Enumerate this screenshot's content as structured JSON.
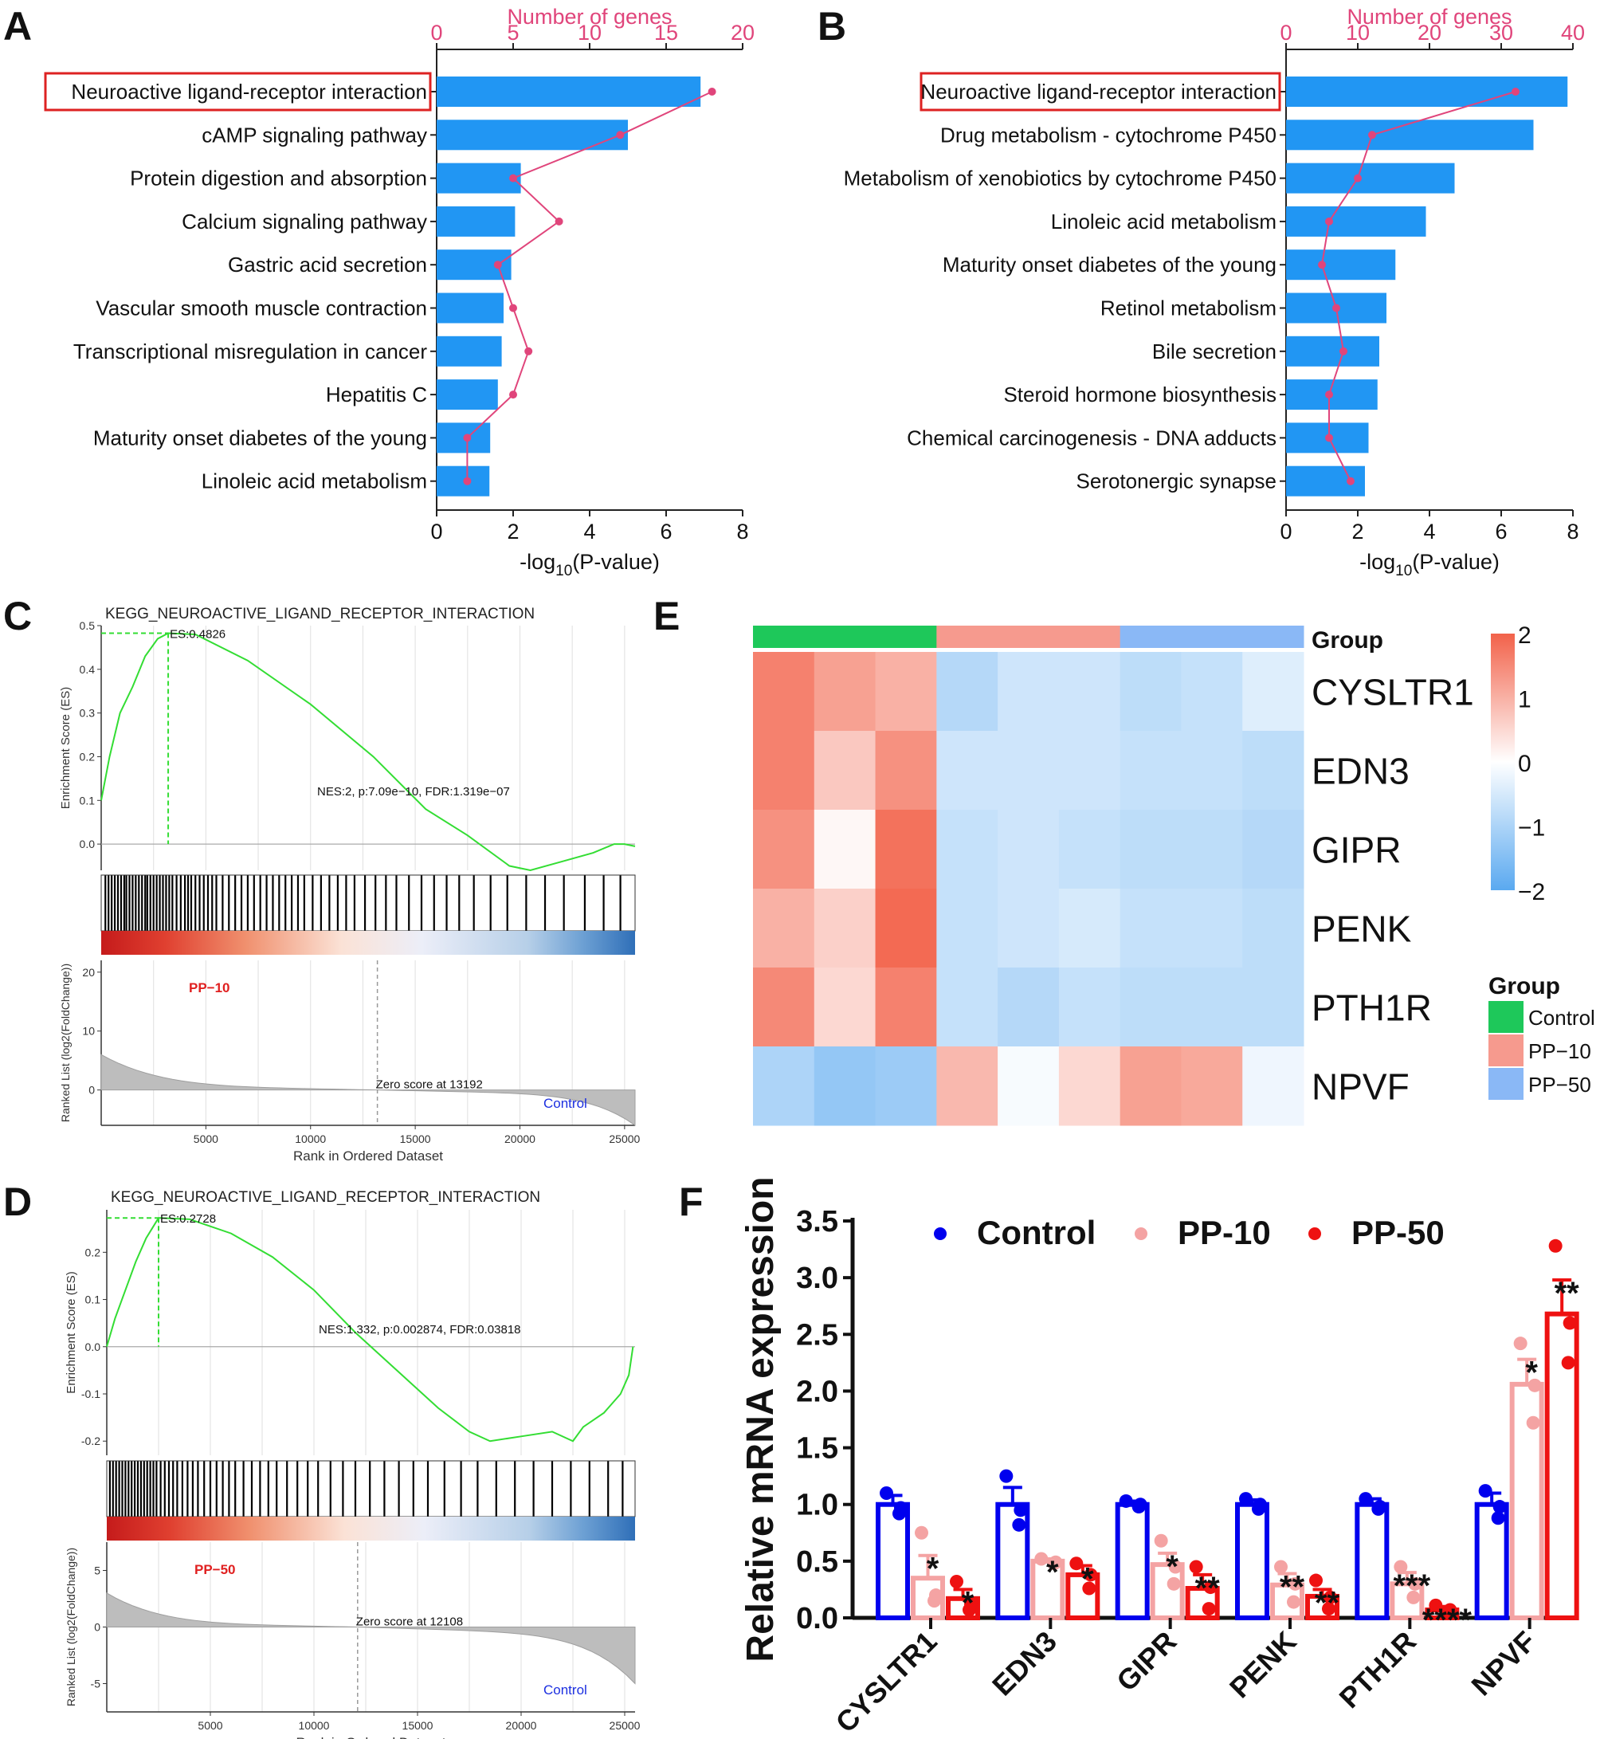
{
  "panel_labels": {
    "a": "A",
    "b": "B",
    "c": "C",
    "d": "D",
    "e": "E",
    "f": "F"
  },
  "colors": {
    "bar": "#2196f3",
    "line": "#e0457b",
    "gsea_line": "#33dd33",
    "control": "#0000ee",
    "pp10": "#f4a3a3",
    "pp50": "#ee1111",
    "heat_high": "#f2624a",
    "heat_low": "#5aa9f0",
    "group_control": "#1ec85a",
    "group_pp10": "#f69a8e",
    "group_pp50": "#8ab8f6"
  },
  "chart_data": [
    {
      "id": "A",
      "type": "bar",
      "orientation": "horizontal",
      "categories": [
        "Neuroactive ligand-receptor interaction",
        "cAMP signaling pathway",
        "Protein digestion and absorption",
        "Calcium signaling pathway",
        "Gastric acid secretion",
        "Vascular smooth muscle contraction",
        "Transcriptional misregulation in cancer",
        "Hepatitis C",
        "Maturity onset diabetes of the young",
        "Linoleic acid metabolism"
      ],
      "values": [
        6.9,
        5.0,
        2.2,
        2.05,
        1.95,
        1.75,
        1.7,
        1.6,
        1.4,
        1.38
      ],
      "line_values": [
        18,
        12,
        5,
        8,
        4,
        5,
        6,
        5,
        2,
        2
      ],
      "highlight_index": 0,
      "xlabel_main": "-log",
      "xlabel_sub": "10",
      "xlabel_tail": "(P-value)",
      "xlim": [
        0,
        8
      ],
      "x_ticks": [
        "0",
        "2",
        "4",
        "6",
        "8"
      ],
      "top_axis_label": "Number of genes",
      "top_lim": [
        0,
        20
      ],
      "top_ticks": [
        "0",
        "5",
        "10",
        "15",
        "20"
      ]
    },
    {
      "id": "B",
      "type": "bar",
      "orientation": "horizontal",
      "categories": [
        "Neuroactive ligand-receptor interaction",
        "Drug metabolism - cytochrome P450",
        "Metabolism of xenobiotics by cytochrome P450",
        "Linoleic acid metabolism",
        "Maturity onset diabetes of the young",
        "Retinol metabolism",
        "Bile secretion",
        "Steroid hormone biosynthesis",
        "Chemical carcinogenesis - DNA adducts",
        "Serotonergic synapse"
      ],
      "values": [
        7.85,
        6.9,
        4.7,
        3.9,
        3.05,
        2.8,
        2.6,
        2.55,
        2.3,
        2.2
      ],
      "line_values": [
        32,
        12,
        10,
        6,
        5,
        7,
        8,
        6,
        6,
        9
      ],
      "highlight_index": 0,
      "xlabel_main": "-log",
      "xlabel_sub": "10",
      "xlabel_tail": "(P-value)",
      "xlim": [
        0,
        8
      ],
      "x_ticks": [
        "0",
        "2",
        "4",
        "6",
        "8"
      ],
      "top_axis_label": "Number of genes",
      "top_lim": [
        0,
        40
      ],
      "top_ticks": [
        "0",
        "10",
        "20",
        "30",
        "40"
      ]
    },
    {
      "id": "C",
      "type": "line",
      "title": "KEGG_NEUROACTIVE_LIGAND_RECEPTOR_INTERACTION",
      "es_label": "ES:0.4826",
      "stats_label": "NES:2, p:7.09e−10, FDR:1.319e−07",
      "es_ylabel": "Enrichment Score (ES)",
      "es_yticks": [
        "0.0",
        "0.1",
        "0.2",
        "0.3",
        "0.4",
        "0.5"
      ],
      "es_ylim": [
        -0.06,
        0.5
      ],
      "peak": [
        3200,
        0.4826
      ],
      "es_curve": [
        [
          0,
          0.1
        ],
        [
          400,
          0.2
        ],
        [
          900,
          0.3
        ],
        [
          1500,
          0.36
        ],
        [
          2100,
          0.43
        ],
        [
          2700,
          0.47
        ],
        [
          3200,
          0.4826
        ],
        [
          4500,
          0.48
        ],
        [
          7000,
          0.42
        ],
        [
          10000,
          0.32
        ],
        [
          13000,
          0.2
        ],
        [
          15500,
          0.08
        ],
        [
          17500,
          0.02
        ],
        [
          19500,
          -0.05
        ],
        [
          20500,
          -0.06
        ],
        [
          22000,
          -0.04
        ],
        [
          23500,
          -0.02
        ],
        [
          24500,
          0.0
        ],
        [
          25000,
          0.0
        ],
        [
          25500,
          -0.005
        ]
      ],
      "rank_ylabel": "Ranked List (log2(FoldChange))",
      "rank_yticks": [
        "0",
        "10",
        "20"
      ],
      "rank_ylim": [
        -6,
        22
      ],
      "rank_range": [
        6,
        -6
      ],
      "group_top": "PP−10",
      "group_bottom": "Control",
      "zero_label": "Zero score at 13192",
      "zero_rank": 13192,
      "xlabel": "Rank in Ordered Dataset",
      "x_ticks": [
        "5000",
        "10000",
        "15000",
        "20000",
        "25000"
      ],
      "xlim": [
        0,
        25500
      ],
      "hits": [
        200,
        350,
        500,
        650,
        800,
        950,
        1100,
        1200,
        1350,
        1500,
        1650,
        1800,
        1950,
        2100,
        2200,
        2350,
        2500,
        2650,
        2800,
        2950,
        3100,
        3250,
        3400,
        3600,
        3800,
        4000,
        4150,
        4300,
        4500,
        4700,
        4900,
        5100,
        5300,
        5500,
        5800,
        6100,
        6400,
        6700,
        7000,
        7300,
        7600,
        7900,
        8200,
        8500,
        8800,
        9100,
        9400,
        9700,
        10100,
        10500,
        10900,
        11300,
        11700,
        12100,
        12600,
        13100,
        13600,
        14100,
        14700,
        15300,
        15900,
        16500,
        17100,
        17800,
        18600,
        19400,
        20300,
        21200,
        22100,
        23100,
        24000,
        24800
      ]
    },
    {
      "id": "D",
      "type": "line",
      "title": "KEGG_NEUROACTIVE_LIGAND_RECEPTOR_INTERACTION",
      "es_label": "ES:0.2728",
      "stats_label": "NES:1.332, p:0.002874, FDR:0.03818",
      "es_ylabel": "Enrichment Score (ES)",
      "es_yticks": [
        "-0.2",
        "-0.1",
        "0.0",
        "0.1",
        "0.2"
      ],
      "es_ylim": [
        -0.23,
        0.29
      ],
      "peak": [
        2500,
        0.2728
      ],
      "es_curve": [
        [
          0,
          0.0
        ],
        [
          400,
          0.06
        ],
        [
          900,
          0.12
        ],
        [
          1400,
          0.18
        ],
        [
          1900,
          0.23
        ],
        [
          2500,
          0.2728
        ],
        [
          4000,
          0.27
        ],
        [
          6000,
          0.24
        ],
        [
          8000,
          0.19
        ],
        [
          10000,
          0.12
        ],
        [
          12000,
          0.03
        ],
        [
          14000,
          -0.05
        ],
        [
          16000,
          -0.13
        ],
        [
          17500,
          -0.18
        ],
        [
          18500,
          -0.2
        ],
        [
          20000,
          -0.19
        ],
        [
          21500,
          -0.18
        ],
        [
          22500,
          -0.2
        ],
        [
          23000,
          -0.17
        ],
        [
          24000,
          -0.14
        ],
        [
          24800,
          -0.1
        ],
        [
          25200,
          -0.06
        ],
        [
          25400,
          0.0
        ]
      ],
      "rank_ylabel": "Ranked List (log2(FoldChange))",
      "rank_yticks": [
        "-5",
        "0",
        "5"
      ],
      "rank_ylim": [
        -7.5,
        7.5
      ],
      "rank_range": [
        3,
        -5
      ],
      "group_top": "PP−50",
      "group_bottom": "Control",
      "zero_label": "Zero score at 12108",
      "zero_rank": 12108,
      "xlabel": "Rank in Ordered Dataset",
      "x_ticks": [
        "5000",
        "10000",
        "15000",
        "20000",
        "25000"
      ],
      "xlim": [
        0,
        25500
      ],
      "hits": [
        150,
        300,
        450,
        600,
        750,
        900,
        1050,
        1200,
        1350,
        1500,
        1650,
        1800,
        1950,
        2100,
        2250,
        2400,
        2600,
        2800,
        3000,
        3200,
        3400,
        3650,
        3900,
        4150,
        4400,
        4700,
        5000,
        5300,
        5600,
        5900,
        6200,
        6600,
        7000,
        7400,
        7800,
        8200,
        8700,
        9200,
        9700,
        10200,
        10800,
        11400,
        12000,
        12700,
        13400,
        14100,
        14800,
        15500,
        16300,
        17100,
        17900,
        18800,
        19700,
        20600,
        21500,
        22400,
        23300,
        24200,
        24900
      ]
    },
    {
      "id": "E",
      "type": "heatmap",
      "rows": [
        "CYSLTR1",
        "EDN3",
        "GIPR",
        "PENK",
        "PTH1R",
        "NPVF"
      ],
      "group_row_label": "Group",
      "columns": [
        "Control",
        "Control",
        "Control",
        "PP-10",
        "PP-10",
        "PP-10",
        "PP-50",
        "PP-50",
        "PP-50"
      ],
      "values": [
        [
          1.6,
          1.2,
          1.0,
          -0.9,
          -0.6,
          -0.6,
          -0.8,
          -0.7,
          -0.4
        ],
        [
          1.6,
          0.7,
          1.4,
          -0.6,
          -0.6,
          -0.6,
          -0.7,
          -0.7,
          -0.8
        ],
        [
          1.4,
          0.1,
          1.8,
          -0.7,
          -0.6,
          -0.7,
          -0.8,
          -0.8,
          -0.9
        ],
        [
          1.0,
          0.6,
          1.9,
          -0.7,
          -0.6,
          -0.5,
          -0.7,
          -0.7,
          -0.8
        ],
        [
          1.5,
          0.5,
          1.6,
          -0.7,
          -0.9,
          -0.7,
          -0.8,
          -0.8,
          -0.8
        ],
        [
          -1.0,
          -1.3,
          -1.2,
          0.9,
          -0.1,
          0.5,
          1.2,
          1.1,
          -0.2
        ]
      ],
      "legend_ticks": [
        "2",
        "1",
        "0",
        "−1",
        "−2"
      ],
      "legend_range": [
        -2,
        2
      ],
      "group_legend_title": "Group",
      "group_legend": [
        "Control",
        "PP−10",
        "PP−50"
      ]
    },
    {
      "id": "F",
      "type": "bar",
      "categories": [
        "CYSLTR1",
        "EDN3",
        "GIPR",
        "PENK",
        "PTH1R",
        "NPVF"
      ],
      "ylabel": "Relative mRNA expression",
      "ylim": [
        0,
        3.5
      ],
      "y_ticks": [
        "0.0",
        "0.5",
        "1.0",
        "1.5",
        "2.0",
        "2.5",
        "3.0",
        "3.5"
      ],
      "series": [
        {
          "name": "Control",
          "values": [
            1.0,
            1.0,
            1.0,
            1.0,
            1.0,
            1.0
          ],
          "err": [
            0.08,
            0.15,
            0.03,
            0.04,
            0.05,
            0.1
          ],
          "points": [
            [
              1.1,
              0.97,
              0.92
            ],
            [
              1.25,
              0.95,
              0.82
            ],
            [
              1.03,
              1.0,
              0.98
            ],
            [
              1.05,
              1.0,
              0.96
            ],
            [
              1.05,
              0.98,
              0.96
            ],
            [
              1.12,
              0.98,
              0.88
            ]
          ],
          "sig": [
            "",
            "",
            "",
            "",
            "",
            ""
          ]
        },
        {
          "name": "PP-10",
          "values": [
            0.35,
            0.5,
            0.47,
            0.29,
            0.3,
            2.06
          ],
          "err": [
            0.2,
            0.02,
            0.1,
            0.1,
            0.1,
            0.22
          ],
          "points": [
            [
              0.75,
              0.2,
              0.15
            ],
            [
              0.52,
              0.49,
              0.48
            ],
            [
              0.68,
              0.45,
              0.3
            ],
            [
              0.45,
              0.3,
              0.14
            ],
            [
              0.45,
              0.3,
              0.18
            ],
            [
              2.42,
              2.05,
              1.72
            ]
          ],
          "sig": [
            "*",
            "*",
            "*",
            "**",
            "***",
            "*"
          ]
        },
        {
          "name": "PP-50",
          "values": [
            0.17,
            0.38,
            0.26,
            0.19,
            0.07,
            2.68
          ],
          "err": [
            0.08,
            0.08,
            0.12,
            0.06,
            0.03,
            0.3
          ],
          "points": [
            [
              0.32,
              0.12,
              0.07
            ],
            [
              0.48,
              0.38,
              0.26
            ],
            [
              0.45,
              0.27,
              0.08
            ],
            [
              0.33,
              0.18,
              0.08
            ],
            [
              0.11,
              0.07,
              0.04
            ],
            [
              3.28,
              2.6,
              2.25
            ]
          ],
          "sig": [
            "*",
            "*",
            "**",
            "**",
            "****",
            "**"
          ]
        }
      ]
    }
  ]
}
